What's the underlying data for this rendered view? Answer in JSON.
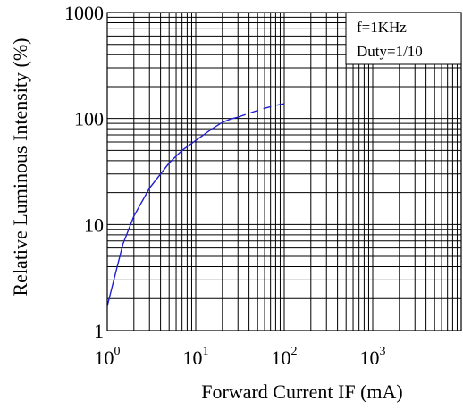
{
  "chart_data": {
    "type": "line",
    "title": "",
    "xlabel": "Forward Current IF (mA)",
    "ylabel": "Relative Luminous Intensity (%)",
    "x_scale": "log",
    "y_scale": "log",
    "xlim": [
      1,
      10000
    ],
    "ylim": [
      1,
      1000
    ],
    "grid": true,
    "x_ticks": [
      {
        "base": "10",
        "exp": "0",
        "value": 1
      },
      {
        "base": "10",
        "exp": "1",
        "value": 10
      },
      {
        "base": "10",
        "exp": "2",
        "value": 100
      },
      {
        "base": "10",
        "exp": "3",
        "value": 1000
      }
    ],
    "y_ticks": [
      {
        "label": "1",
        "value": 1
      },
      {
        "label": "10",
        "value": 10
      },
      {
        "label": "100",
        "value": 100
      },
      {
        "label": "1000",
        "value": 1000
      }
    ],
    "annotations": [
      "f=1KHz",
      "Duty=1/10"
    ],
    "series": [
      {
        "color": "#1f1fd0",
        "style": "solid",
        "x": [
          1,
          1.5,
          2,
          3,
          5,
          7,
          10,
          15,
          20,
          25,
          30
        ],
        "y": [
          1.7,
          6.5,
          12,
          22,
          38,
          50,
          62,
          79,
          92,
          99,
          103
        ]
      },
      {
        "color": "#1f1fd0",
        "style": "dashed",
        "x": [
          30,
          40,
          50,
          60,
          80,
          100
        ],
        "y": [
          103,
          112,
          119,
          125,
          133,
          138
        ]
      }
    ]
  }
}
